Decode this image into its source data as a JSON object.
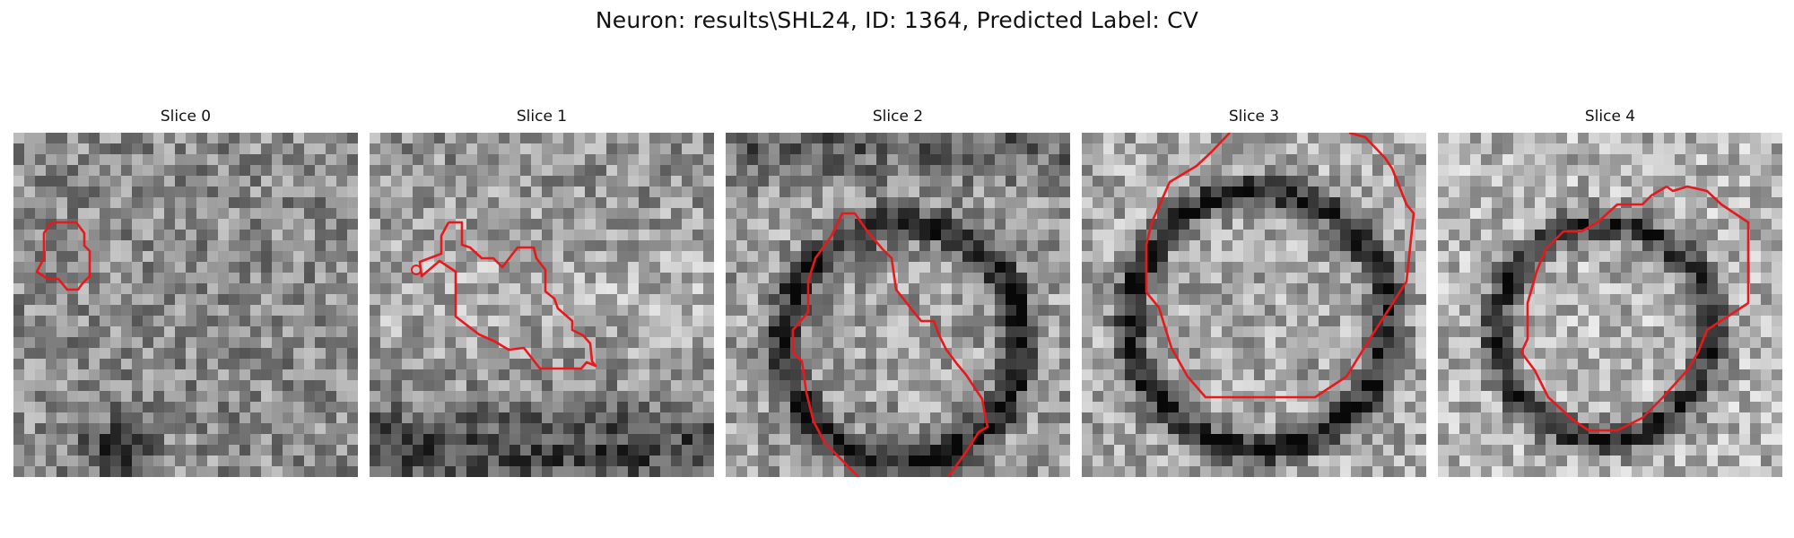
{
  "figure": {
    "title": "Neuron: results\\SHL24, ID: 1364, Predicted Label: CV"
  },
  "panels": [
    {
      "title": "Slice 0",
      "contour_color": "#e8191b"
    },
    {
      "title": "Slice 1",
      "contour_color": "#e8191b"
    },
    {
      "title": "Slice 2",
      "contour_color": "#e8191b"
    },
    {
      "title": "Slice 3",
      "contour_color": "#e8191b"
    },
    {
      "title": "Slice 4",
      "contour_color": "#e8191b"
    }
  ]
}
